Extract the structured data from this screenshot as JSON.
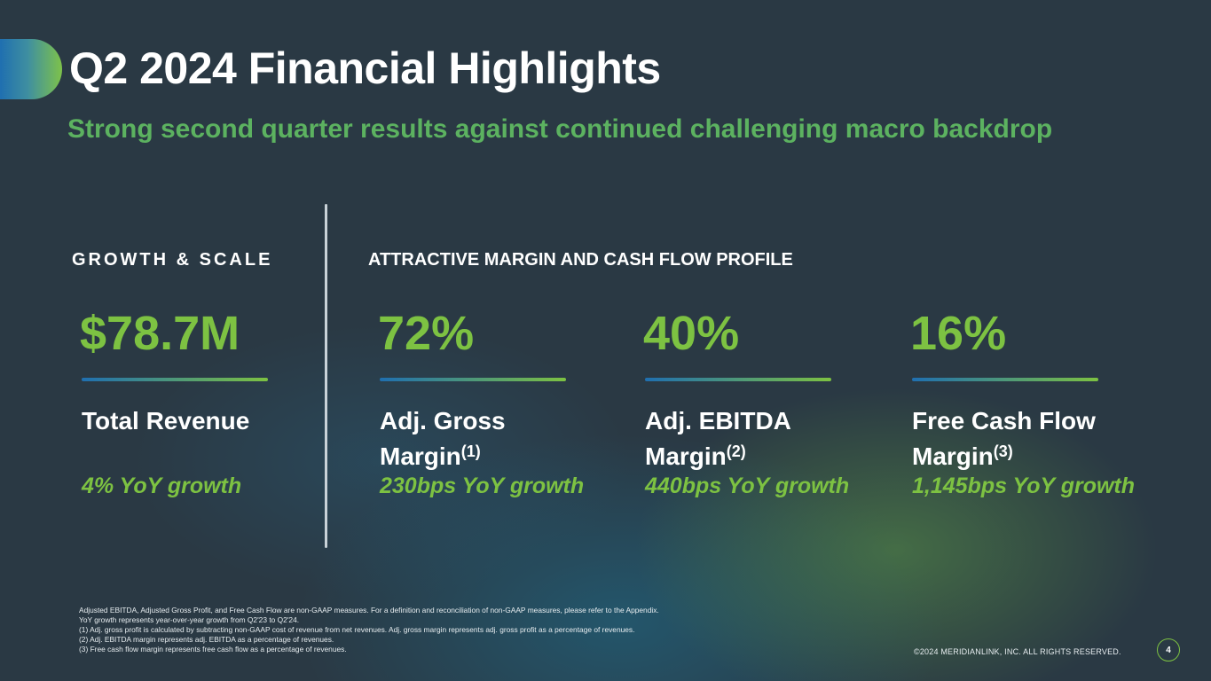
{
  "header": {
    "title": "Q2 2024 Financial Highlights",
    "subtitle": "Strong second quarter results against continued challenging macro backdrop"
  },
  "sections": {
    "growth": "GROWTH & SCALE",
    "margin": "ATTRACTIVE MARGIN AND CASH FLOW PROFILE"
  },
  "metrics": [
    {
      "value": "$78.7M",
      "label": "Total Revenue",
      "sup": "",
      "growth": "4% YoY growth"
    },
    {
      "value": "72%",
      "label_line1": "Adj. Gross",
      "label_line2": "Margin",
      "sup": "(1)",
      "growth": "230bps YoY growth"
    },
    {
      "value": "40%",
      "label_line1": "Adj. EBITDA",
      "label_line2": "Margin",
      "sup": "(2)",
      "growth": "440bps YoY growth"
    },
    {
      "value": "16%",
      "label_line1": "Free Cash Flow",
      "label_line2": "Margin",
      "sup": "(3)",
      "growth": "1,145bps YoY growth"
    }
  ],
  "footnotes": [
    "Adjusted EBITDA, Adjusted Gross Profit, and Free Cash Flow are non-GAAP measures. For a definition and reconciliation of non-GAAP measures, please refer to the Appendix.",
    "YoY growth represents year-over-year growth from Q2'23 to Q2'24.",
    "(1)   Adj. gross profit is calculated by subtracting non-GAAP cost of revenue from net revenues. Adj.  gross margin represents adj. gross profit as a percentage of revenues.",
    "(2)   Adj. EBITDA margin represents adj. EBITDA as a percentage of revenues.",
    "(3)   Free cash flow margin represents free cash flow as a percentage of revenues."
  ],
  "footer": {
    "copyright": "©2024 MERIDIANLINK, INC. ALL RIGHTS RESERVED.",
    "page_number": "4"
  },
  "colors": {
    "background": "#2a3944",
    "accent_green": "#7dc242",
    "subtitle_green": "#5cb260",
    "accent_blue": "#1f6fb0"
  }
}
